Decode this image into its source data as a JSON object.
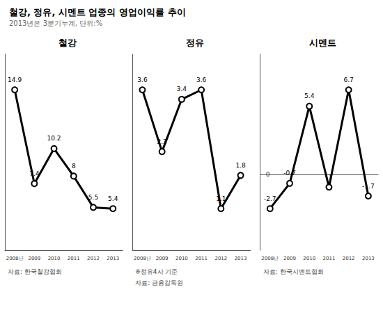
{
  "title": "철강, 정유, 시멘트 업종의 영업이익률 추이",
  "subtitle": "2013년은 3분기누계, 단위:%",
  "chart_data": [
    {
      "type": "line",
      "title": "철강",
      "categories": [
        "2008년",
        "2009",
        "2010",
        "2011",
        "2012",
        "2013"
      ],
      "values": [
        14.9,
        7.4,
        10.2,
        8.0,
        5.5,
        5.4
      ],
      "color": "#000000",
      "ylim": [
        2.075,
        17.75
      ],
      "tick_labels": "x",
      "data_labels": true,
      "grid": false,
      "annotations": [
        "자료: 한국철강협회"
      ]
    },
    {
      "type": "line",
      "title": "정유",
      "categories": [
        "2008년",
        "2009",
        "2010",
        "2011",
        "2012",
        "2013"
      ],
      "values": [
        3.6,
        2.3,
        3.4,
        3.6,
        1.1,
        1.8
      ],
      "color": "#000000",
      "ylim": [
        0.225,
        4.35
      ],
      "tick_labels": "x",
      "data_labels": true,
      "grid": false,
      "annotations": [
        "※정유4사 기준",
        "자료: 금융감독원"
      ]
    },
    {
      "type": "line",
      "title": "시멘트",
      "categories": [
        "2008년",
        "2009",
        "2010",
        "2011",
        "2012",
        "2013"
      ],
      "values": [
        -2.7,
        -0.7,
        5.4,
        -1.0,
        6.7,
        -1.7
      ],
      "color": "#000000",
      "ylim": [
        -5.99,
        9.52
      ],
      "yticks": [
        0
      ],
      "data_labels": true,
      "grid": true,
      "annotations": [
        "자료: 한국시멘트협회"
      ]
    }
  ]
}
